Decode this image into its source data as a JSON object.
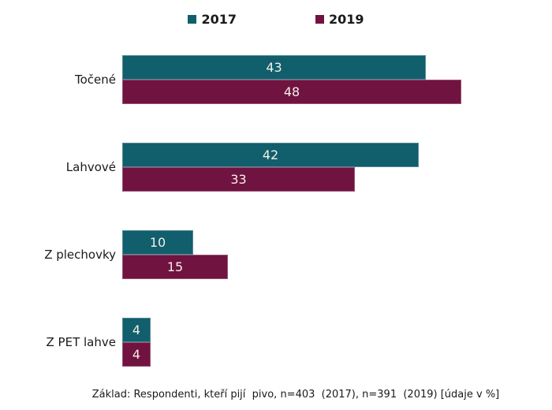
{
  "chart_data": {
    "type": "bar",
    "orientation": "horizontal",
    "title": "",
    "categories": [
      "Točené",
      "Lahvové",
      "Z plechovky",
      "Z PET lahve"
    ],
    "series": [
      {
        "name": "2017",
        "color": "#115e6d",
        "values": [
          43,
          42,
          10,
          4
        ]
      },
      {
        "name": "2019",
        "color": "#701341",
        "values": [
          48,
          33,
          15,
          4
        ]
      }
    ],
    "value_labels_shown": true,
    "value_label_color": "#f2f0e8",
    "xlim": [
      0,
      55
    ],
    "grid": false,
    "legend_position": "top",
    "footnote": "Základ: Respondenti, kteří pijí  pivo, n=403  (2017), n=391  (2019) [údaje v %]"
  }
}
